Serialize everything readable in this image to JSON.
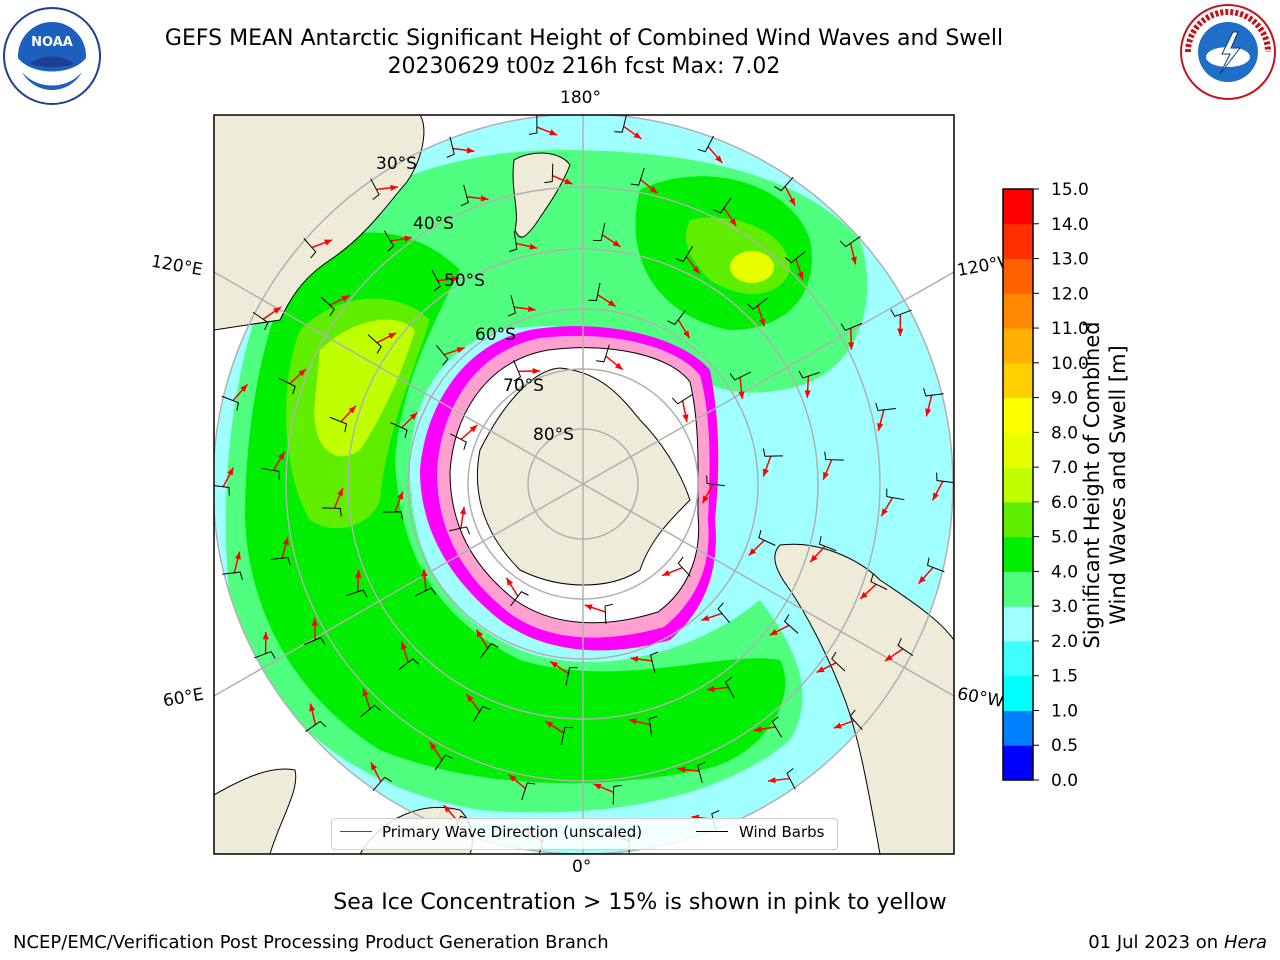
{
  "header": {
    "title_line1": "GEFS MEAN Antarctic Significant Height of Combined Wind Waves and Swell",
    "title_line2": "20230629 t00z 216h fcst   Max: 7.02"
  },
  "logos": {
    "left": "NOAA",
    "right": "NATIONAL WEATHER SERVICE"
  },
  "map": {
    "projection": "south-polar-stereographic",
    "longitude_labels": {
      "top": "180°",
      "bottom": "0°",
      "upper_left": "120°E",
      "lower_left": "60°E",
      "upper_right": "120°W",
      "lower_right": "60°W"
    },
    "latitude_labels": [
      "30°S",
      "40°S",
      "50°S",
      "60°S",
      "70°S",
      "80°S"
    ],
    "colors": {
      "land": "#eeecd9",
      "sea_ice": "#ff00ff",
      "wave_arrows": "#ff0000",
      "wind_barbs": "#000000",
      "frame": "#000000",
      "gridlines": "#b0b0b0"
    }
  },
  "colorbar": {
    "label": "Significant Height of Combined Wind Waves and Swell [m]",
    "label_line1": "Significant Height of Combined",
    "label_line2": "Wind Waves and Swell [m]",
    "ticks": [
      "0.0",
      "0.5",
      "1.0",
      "1.5",
      "2.0",
      "3.0",
      "4.0",
      "5.0",
      "6.0",
      "7.0",
      "8.0",
      "9.0",
      "10.0",
      "11.0",
      "12.0",
      "13.0",
      "14.0",
      "15.0"
    ],
    "colors": [
      "#0000ff",
      "#0080ff",
      "#00ffff",
      "#40ffff",
      "#a0ffff",
      "#50ff80",
      "#00ee00",
      "#60ee00",
      "#c0ff00",
      "#e8ff00",
      "#ffff00",
      "#ffd000",
      "#ffb000",
      "#ff8800",
      "#ff6000",
      "#ff3000",
      "#ff0000"
    ]
  },
  "legend": {
    "wave_direction": "Primary Wave Direction (unscaled)",
    "wind_barbs": "Wind Barbs"
  },
  "note": "Sea Ice Concentration > 15% is shown in pink to yellow",
  "footer": {
    "left": "NCEP/EMC/Verification Post Processing Product Generation Branch",
    "date": "01 Jul 2023 on ",
    "machine": "Hera"
  }
}
